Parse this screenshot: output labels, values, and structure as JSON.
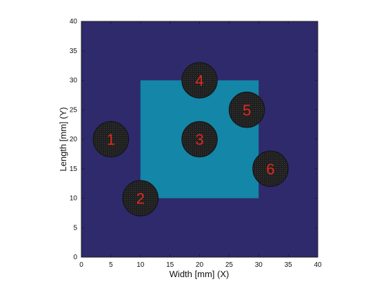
{
  "chart_data": {
    "type": "heatmap",
    "xlabel": "Width [mm] (X)",
    "ylabel": "Length [mm] (Y)",
    "xlim": [
      0,
      40
    ],
    "ylim": [
      0,
      40
    ],
    "xticks": [
      0,
      5,
      10,
      15,
      20,
      25,
      30,
      35,
      40
    ],
    "yticks": [
      0,
      5,
      10,
      15,
      20,
      25,
      30,
      35,
      40
    ],
    "grid": false,
    "background": {
      "x": [
        0,
        40
      ],
      "y": [
        0,
        40
      ],
      "color": "#2e2a6b"
    },
    "rectangle": {
      "x": [
        10,
        30
      ],
      "y": [
        10,
        30
      ],
      "color": "#1486a7"
    },
    "circles": [
      {
        "label": "1",
        "cx": 5,
        "cy": 20,
        "r": 3
      },
      {
        "label": "2",
        "cx": 10,
        "cy": 10,
        "r": 3
      },
      {
        "label": "3",
        "cx": 20,
        "cy": 20,
        "r": 3
      },
      {
        "label": "4",
        "cx": 20,
        "cy": 30,
        "r": 3
      },
      {
        "label": "5",
        "cx": 28,
        "cy": 25,
        "r": 3
      },
      {
        "label": "6",
        "cx": 32,
        "cy": 15,
        "r": 3
      }
    ],
    "circle_color": "#1d1d1d",
    "circle_texture": "#3f3f3f",
    "label_color": "#e12b1d"
  }
}
